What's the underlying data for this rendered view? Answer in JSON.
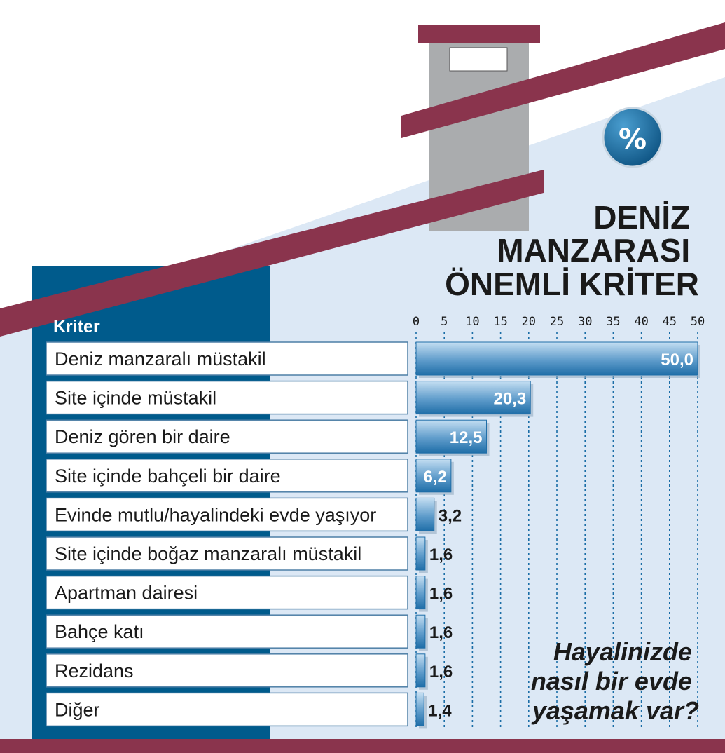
{
  "badge": "%",
  "title_lines": [
    "DENİZ",
    "MANZARASI",
    "ÖNEMLİ KRİTER"
  ],
  "question_lines": [
    "Hayalinizde",
    "nasıl bir evde",
    "yaşamak var?"
  ],
  "colors": {
    "roof": "#8a344d",
    "wall": "#dce8f5",
    "panel": "#005b8c",
    "chimney": "#aaacae",
    "bar_dark": "#1f6ea8",
    "bar_light": "#b7d7ef",
    "badge": "#0a5f90"
  },
  "chart_data": {
    "type": "bar",
    "orientation": "horizontal",
    "category_header": "Kriter",
    "categories": [
      "Deniz manzaralı müstakil",
      "Site içinde müstakil",
      "Deniz gören bir daire",
      "Site içinde bahçeli bir daire",
      "Evinde mutlu/hayalindeki evde yaşıyor",
      "Site içinde boğaz manzaralı müstakil",
      "Apartman dairesi",
      "Bahçe katı",
      "Rezidans",
      "Diğer"
    ],
    "values": [
      50.0,
      20.3,
      12.5,
      6.2,
      3.2,
      1.6,
      1.6,
      1.6,
      1.6,
      1.4
    ],
    "value_labels": [
      "50,0",
      "20,3",
      "12,5",
      "6,2",
      "3,2",
      "1,6",
      "1,6",
      "1,6",
      "1,6",
      "1,4"
    ],
    "ticks": [
      "0",
      "5",
      "10",
      "15",
      "20",
      "25",
      "30",
      "35",
      "40",
      "45",
      "50"
    ],
    "xlim": [
      0,
      50
    ],
    "grid": true,
    "unit": "%"
  }
}
